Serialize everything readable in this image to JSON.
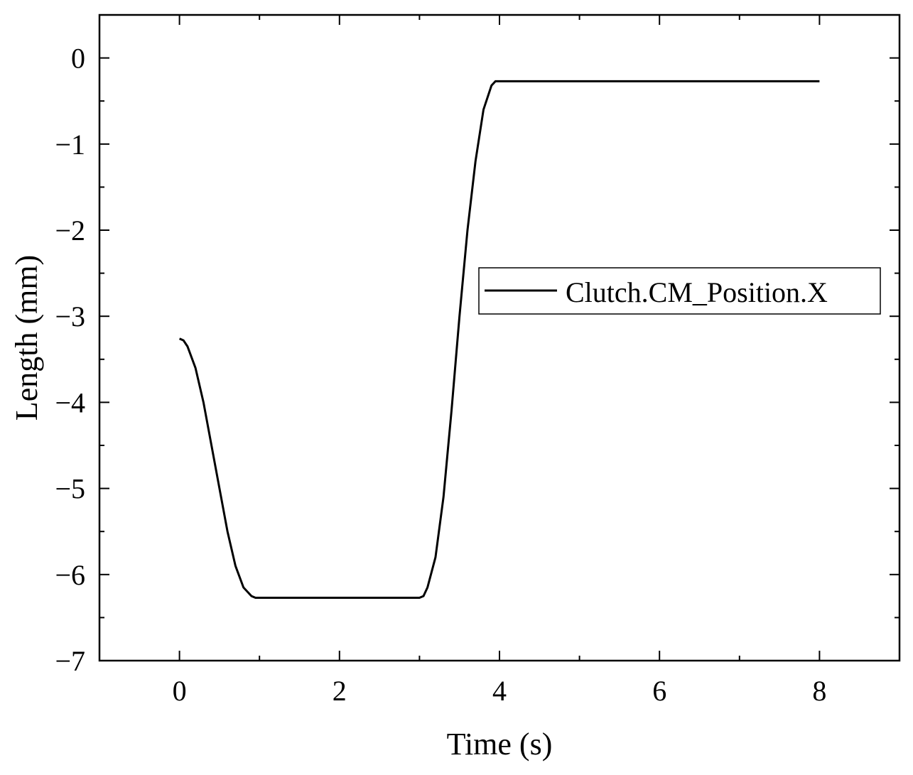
{
  "chart_data": {
    "type": "line",
    "xlabel": "Time (s)",
    "ylabel": "Length (mm)",
    "xlim": [
      -1,
      9
    ],
    "ylim": [
      -7,
      0.5
    ],
    "xticks": [
      0,
      2,
      4,
      6,
      8
    ],
    "xtick_labels": [
      "0",
      "2",
      "4",
      "6",
      "8"
    ],
    "yticks": [
      0,
      -1,
      -2,
      -3,
      -4,
      -5,
      -6,
      -7
    ],
    "ytick_labels": [
      "0",
      "−1",
      "−2",
      "−3",
      "−4",
      "−5",
      "−6",
      "−7"
    ],
    "grid": false,
    "legend_position": "right",
    "series": [
      {
        "name": "Clutch.CM_Position.X",
        "color": "#000000",
        "x": [
          0,
          0.05,
          0.1,
          0.2,
          0.3,
          0.4,
          0.5,
          0.6,
          0.7,
          0.8,
          0.9,
          0.95,
          1.0,
          1.5,
          2.0,
          2.5,
          3.0,
          3.05,
          3.1,
          3.2,
          3.3,
          3.4,
          3.5,
          3.6,
          3.7,
          3.8,
          3.9,
          3.95,
          4.0,
          5.0,
          6.0,
          7.0,
          8.0
        ],
        "y": [
          -3.26,
          -3.28,
          -3.35,
          -3.6,
          -4.0,
          -4.5,
          -5.0,
          -5.5,
          -5.9,
          -6.15,
          -6.25,
          -6.27,
          -6.27,
          -6.27,
          -6.27,
          -6.27,
          -6.27,
          -6.25,
          -6.15,
          -5.8,
          -5.1,
          -4.1,
          -3.0,
          -2.0,
          -1.2,
          -0.6,
          -0.32,
          -0.27,
          -0.27,
          -0.27,
          -0.27,
          -0.27,
          -0.27
        ]
      }
    ]
  }
}
